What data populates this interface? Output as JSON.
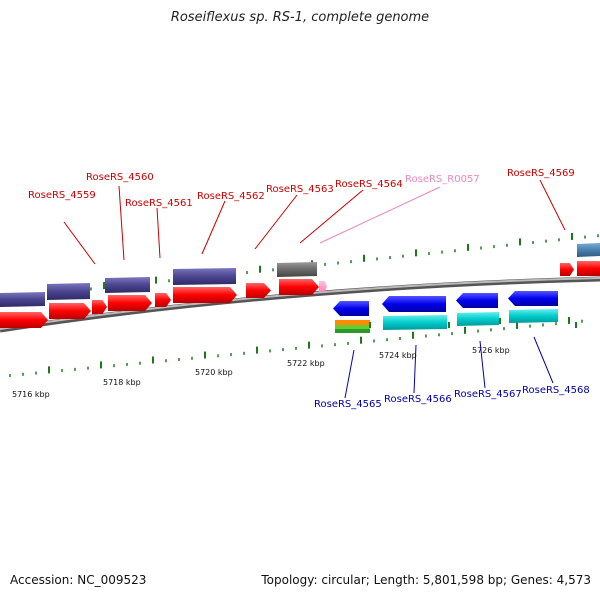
{
  "title": "Roseiflexus sp. RS-1, complete genome",
  "footer": {
    "accession": "Accession: NC_009523",
    "topology": "Topology: circular; Length: 5,801,598 bp; Genes: 4,573"
  },
  "scale_labels": [
    "5716 kbp",
    "5718 kbp",
    "5720 kbp",
    "5722 kbp",
    "5724 kbp",
    "5726 kbp"
  ],
  "gene_labels_top": [
    "RoseRS_4559",
    "RoseRS_4560",
    "RoseRS_4561",
    "RoseRS_4562",
    "RoseRS_4563",
    "RoseRS_4564",
    "RoseRS_R0057",
    "RoseRS_4569"
  ],
  "gene_labels_bottom": [
    "RoseRS_4565",
    "RoseRS_4566",
    "RoseRS_4567",
    "RoseRS_4568"
  ],
  "colors": {
    "forward_cds": "#ff0000",
    "forward_protein": "#4b4590",
    "rna": "#ff99c8",
    "reverse_cds": "#0000ee",
    "reverse_protein": "#00cccc",
    "tick": "#1a7a1a",
    "backbone": "#888888",
    "label_forward": "#cc0000",
    "label_rna": "#ee88bb",
    "label_reverse": "#0000aa"
  }
}
